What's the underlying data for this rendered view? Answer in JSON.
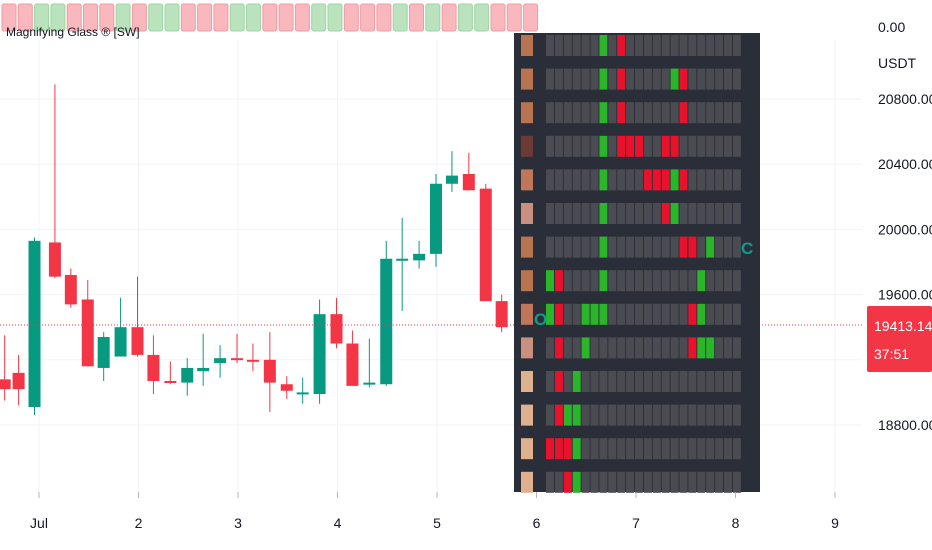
{
  "indicator": {
    "title": "Magnifying Glass ® [SW]",
    "zero_label": "0.00",
    "strip": [
      "r",
      "r",
      "g",
      "g",
      "r",
      "r",
      "r",
      "g",
      "r",
      "g",
      "g",
      "r",
      "r",
      "r",
      "g",
      "g",
      "r",
      "r",
      "r",
      "g",
      "g",
      "r",
      "r",
      "r",
      "g",
      "r",
      "g",
      "r",
      "g",
      "g",
      "r",
      "r",
      "r"
    ]
  },
  "chart_data": {
    "type": "candlestick",
    "symbol_quote": "USDT",
    "ylabel": "USDT",
    "ylim": [
      18480,
      21150
    ],
    "y_ticks": [
      "20800.00",
      "20400.00",
      "20000.00",
      "19600.00",
      "18800.00"
    ],
    "y_tick_values": [
      20800,
      20400,
      20000,
      19600,
      18800
    ],
    "x_ticks": [
      "Jul",
      "2",
      "3",
      "4",
      "5",
      "6",
      "7",
      "8",
      "9"
    ],
    "x_tick_days": [
      1,
      2,
      3,
      4,
      5,
      6,
      7,
      8,
      9
    ],
    "candles": [
      {
        "t": 0.655,
        "o": 19080,
        "h": 19350,
        "l": 18950,
        "c": 19020
      },
      {
        "t": 0.795,
        "o": 19120,
        "h": 19230,
        "l": 18920,
        "c": 19020
      },
      {
        "t": 0.955,
        "o": 18910,
        "h": 19950,
        "l": 18860,
        "c": 19930
      },
      {
        "t": 1.16,
        "o": 19920,
        "h": 20890,
        "l": 19700,
        "c": 19710
      },
      {
        "t": 1.32,
        "o": 19720,
        "h": 19760,
        "l": 19520,
        "c": 19540
      },
      {
        "t": 1.49,
        "o": 19570,
        "h": 19690,
        "l": 19160,
        "c": 19160
      },
      {
        "t": 1.65,
        "o": 19150,
        "h": 19370,
        "l": 19070,
        "c": 19340
      },
      {
        "t": 1.82,
        "o": 19220,
        "h": 19580,
        "l": 19220,
        "c": 19400
      },
      {
        "t": 1.99,
        "o": 19400,
        "h": 19710,
        "l": 19220,
        "c": 19230
      },
      {
        "t": 2.15,
        "o": 19230,
        "h": 19350,
        "l": 18990,
        "c": 19070
      },
      {
        "t": 2.32,
        "o": 19070,
        "h": 19190,
        "l": 19050,
        "c": 19060
      },
      {
        "t": 2.49,
        "o": 19060,
        "h": 19210,
        "l": 18980,
        "c": 19150
      },
      {
        "t": 2.65,
        "o": 19130,
        "h": 19360,
        "l": 19040,
        "c": 19150
      },
      {
        "t": 2.82,
        "o": 19180,
        "h": 19290,
        "l": 19090,
        "c": 19210
      },
      {
        "t": 2.99,
        "o": 19210,
        "h": 19360,
        "l": 19180,
        "c": 19200
      },
      {
        "t": 3.15,
        "o": 19200,
        "h": 19300,
        "l": 19130,
        "c": 19190
      },
      {
        "t": 3.32,
        "o": 19200,
        "h": 19370,
        "l": 18880,
        "c": 19060
      },
      {
        "t": 3.49,
        "o": 19050,
        "h": 19100,
        "l": 18960,
        "c": 19010
      },
      {
        "t": 3.65,
        "o": 18990,
        "h": 19090,
        "l": 18930,
        "c": 19000
      },
      {
        "t": 3.82,
        "o": 18990,
        "h": 19570,
        "l": 18930,
        "c": 19480
      },
      {
        "t": 3.99,
        "o": 19480,
        "h": 19580,
        "l": 19270,
        "c": 19300
      },
      {
        "t": 4.15,
        "o": 19300,
        "h": 19380,
        "l": 19040,
        "c": 19040
      },
      {
        "t": 4.32,
        "o": 19050,
        "h": 19330,
        "l": 19030,
        "c": 19060
      },
      {
        "t": 4.49,
        "o": 19050,
        "h": 19930,
        "l": 19040,
        "c": 19820
      },
      {
        "t": 4.65,
        "o": 19810,
        "h": 20070,
        "l": 19500,
        "c": 19820
      },
      {
        "t": 4.82,
        "o": 19810,
        "h": 19930,
        "l": 19760,
        "c": 19850
      },
      {
        "t": 4.99,
        "o": 19850,
        "h": 20340,
        "l": 19770,
        "c": 20280
      },
      {
        "t": 5.15,
        "o": 20280,
        "h": 20480,
        "l": 20230,
        "c": 20330
      },
      {
        "t": 5.32,
        "o": 20340,
        "h": 20470,
        "l": 20240,
        "c": 20240
      },
      {
        "t": 5.49,
        "o": 20250,
        "h": 20280,
        "l": 19560,
        "c": 19560
      },
      {
        "t": 5.65,
        "o": 19560,
        "h": 19600,
        "l": 19370,
        "c": 19400
      }
    ],
    "current_price": "19413.14",
    "countdown": "37:51",
    "colors": {
      "up": "#089981",
      "down": "#f23645",
      "grid": "#f0f3fa",
      "panel": "#2a2e39",
      "price_tag": "#f23645"
    }
  },
  "heatmap": {
    "rows": [
      {
        "swatch": "#b87350",
        "cells": "nnnnnnGnRnnnnnnnnnnnnn"
      },
      {
        "swatch": "#b87350",
        "cells": "nnnnnnGnRnnnnnGRnnnnnn"
      },
      {
        "swatch": "#b87350",
        "cells": "nnnnnnGnRnnnnnnRnnnnnn"
      },
      {
        "swatch": "#6b3a34",
        "cells": "nnnnnnGnRRRnnRRnnnnnnn"
      },
      {
        "swatch": "#c07658",
        "cells": "nnnnnnGnnnnRRRGRnnnnnn"
      },
      {
        "swatch": "#c99080",
        "cells": "nnnnnnGnnnnnnRGnnnnnnn"
      },
      {
        "swatch": "#b87350",
        "cells": "nnnnnnGnnnnnnnnRRnGnnn"
      },
      {
        "swatch": "#b87350",
        "cells": "GRnnnnGnnnnnnnnnnGnnnn"
      },
      {
        "swatch": "#c07658",
        "cells": "GRnnGGGnnnnnnnnnRGnnnn"
      },
      {
        "swatch": "#c99080",
        "cells": "nRnnGnnnnnnnnnnnRGGnnn"
      },
      {
        "swatch": "#deb08e",
        "cells": "nRnGnnnnnnnnnnnnnnnnnn"
      },
      {
        "swatch": "#deb08e",
        "cells": "nRGGnnnnnnnnnnnnnnnnnn"
      },
      {
        "swatch": "#deb08e",
        "cells": "RRRGnnnnnnnnnnnnnnnnnn"
      },
      {
        "swatch": "#deb08e",
        "cells": "nnRGnnnnnnnnnnnnnnnnnn"
      }
    ],
    "cell_colors": {
      "G": "#2bb52b",
      "R": "#e8122c",
      "n": "#4a4c52"
    },
    "open_marker": "O",
    "close_marker": "C"
  }
}
